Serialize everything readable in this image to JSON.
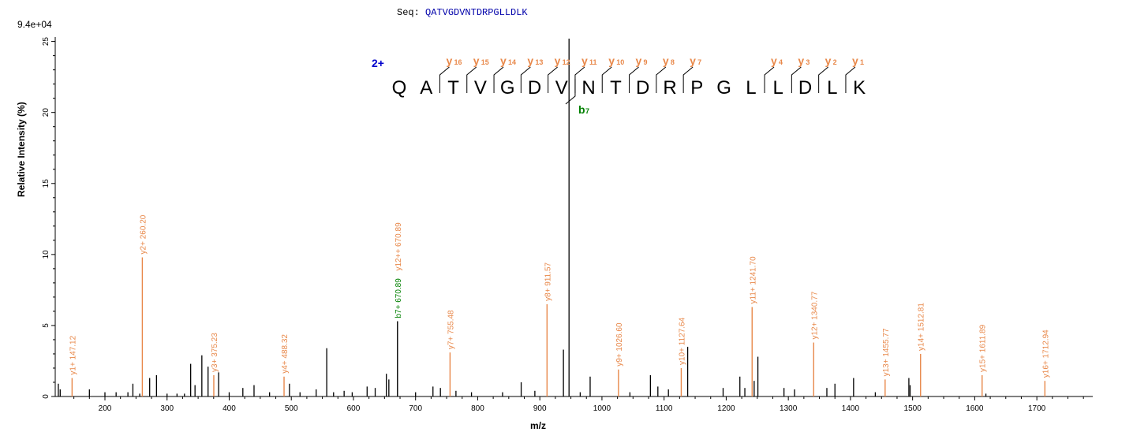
{
  "header": {
    "seq_prefix": "Seq:",
    "sequence": "QATVGDVNTDRPGLLDLK"
  },
  "chart_data": {
    "type": "bar",
    "title": "",
    "scale_label": "9.4e+04",
    "xlabel": "m/z",
    "ylabel": "Relative  Intensity (%)",
    "xlim": [
      120,
      1790
    ],
    "ylim": [
      0,
      25.2
    ],
    "xticks": [
      200,
      300,
      400,
      500,
      600,
      700,
      800,
      900,
      1000,
      1100,
      1200,
      1300,
      1400,
      1500,
      1600,
      1700
    ],
    "yticks": [
      0,
      5,
      10,
      15,
      20,
      25
    ],
    "colors": {
      "y_ion": "#e8884a",
      "b_ion": "#008000",
      "other": "#000000",
      "charge": "#0000cc"
    },
    "annotated_peaks": [
      {
        "mz": 147.12,
        "intensity": 1.3,
        "label": "y1+ 147.12",
        "ion": "y"
      },
      {
        "mz": 260.2,
        "intensity": 9.8,
        "label": "y2+ 260.20",
        "ion": "y"
      },
      {
        "mz": 375.23,
        "intensity": 1.5,
        "label": "y3+ 375.23",
        "ion": "y"
      },
      {
        "mz": 488.32,
        "intensity": 1.4,
        "label": "y4+ 488.32",
        "ion": "y"
      },
      {
        "mz": 670.89,
        "intensity": 5.3,
        "label": "b7+ 670.89",
        "ion": "b"
      },
      {
        "mz": 670.89,
        "intensity": 5.3,
        "label": "y12++ 670.89",
        "ion": "y"
      },
      {
        "mz": 755.48,
        "intensity": 3.1,
        "label": "y7+ 755.48",
        "ion": "y"
      },
      {
        "mz": 911.57,
        "intensity": 6.5,
        "label": "y8+ 911.57",
        "ion": "y"
      },
      {
        "mz": 1026.6,
        "intensity": 1.9,
        "label": "y9+ 1026.60",
        "ion": "y"
      },
      {
        "mz": 1127.64,
        "intensity": 2.0,
        "label": "y10+ 1127.64",
        "ion": "y"
      },
      {
        "mz": 1241.7,
        "intensity": 6.3,
        "label": "y11+ 1241.70",
        "ion": "y"
      },
      {
        "mz": 1340.77,
        "intensity": 3.8,
        "label": "y12+ 1340.77",
        "ion": "y"
      },
      {
        "mz": 1455.77,
        "intensity": 1.2,
        "label": "y13+ 1455.77",
        "ion": "y"
      },
      {
        "mz": 1512.81,
        "intensity": 3.0,
        "label": "y14+ 1512.81",
        "ion": "y"
      },
      {
        "mz": 1611.89,
        "intensity": 1.5,
        "label": "y15+ 1611.89",
        "ion": "y"
      },
      {
        "mz": 1712.94,
        "intensity": 1.1,
        "label": "y16+ 1712.94",
        "ion": "y"
      }
    ],
    "other_peaks": [
      {
        "mz": 125,
        "intensity": 0.9
      },
      {
        "mz": 128,
        "intensity": 0.5
      },
      {
        "mz": 175,
        "intensity": 0.5
      },
      {
        "mz": 200,
        "intensity": 0.3
      },
      {
        "mz": 218,
        "intensity": 0.3
      },
      {
        "mz": 237,
        "intensity": 0.3
      },
      {
        "mz": 245,
        "intensity": 0.9
      },
      {
        "mz": 256,
        "intensity": 0.2
      },
      {
        "mz": 272,
        "intensity": 1.3
      },
      {
        "mz": 283,
        "intensity": 1.5
      },
      {
        "mz": 300,
        "intensity": 0.2
      },
      {
        "mz": 316,
        "intensity": 0.2
      },
      {
        "mz": 328,
        "intensity": 0.2
      },
      {
        "mz": 338,
        "intensity": 2.3
      },
      {
        "mz": 345,
        "intensity": 0.8
      },
      {
        "mz": 356,
        "intensity": 2.9
      },
      {
        "mz": 366,
        "intensity": 2.1
      },
      {
        "mz": 383,
        "intensity": 1.7
      },
      {
        "mz": 400,
        "intensity": 0.3
      },
      {
        "mz": 422,
        "intensity": 0.6
      },
      {
        "mz": 440,
        "intensity": 0.8
      },
      {
        "mz": 465,
        "intensity": 0.3
      },
      {
        "mz": 497,
        "intensity": 0.9
      },
      {
        "mz": 514,
        "intensity": 0.3
      },
      {
        "mz": 540,
        "intensity": 0.5
      },
      {
        "mz": 557,
        "intensity": 3.4
      },
      {
        "mz": 568,
        "intensity": 0.3
      },
      {
        "mz": 585,
        "intensity": 0.4
      },
      {
        "mz": 598,
        "intensity": 0.3
      },
      {
        "mz": 622,
        "intensity": 0.7
      },
      {
        "mz": 635,
        "intensity": 0.6
      },
      {
        "mz": 653,
        "intensity": 1.6
      },
      {
        "mz": 657,
        "intensity": 1.2
      },
      {
        "mz": 700,
        "intensity": 0.3
      },
      {
        "mz": 728,
        "intensity": 0.7
      },
      {
        "mz": 740,
        "intensity": 0.6
      },
      {
        "mz": 765,
        "intensity": 0.4
      },
      {
        "mz": 790,
        "intensity": 0.3
      },
      {
        "mz": 840,
        "intensity": 0.3
      },
      {
        "mz": 870,
        "intensity": 1.0
      },
      {
        "mz": 892,
        "intensity": 0.4
      },
      {
        "mz": 938,
        "intensity": 3.3
      },
      {
        "mz": 947,
        "intensity": 25.2
      },
      {
        "mz": 965,
        "intensity": 0.3
      },
      {
        "mz": 981,
        "intensity": 1.4
      },
      {
        "mz": 1045,
        "intensity": 0.3
      },
      {
        "mz": 1078,
        "intensity": 1.5
      },
      {
        "mz": 1090,
        "intensity": 0.7
      },
      {
        "mz": 1107,
        "intensity": 0.5
      },
      {
        "mz": 1138,
        "intensity": 3.5
      },
      {
        "mz": 1195,
        "intensity": 0.6
      },
      {
        "mz": 1222,
        "intensity": 1.4
      },
      {
        "mz": 1230,
        "intensity": 0.6
      },
      {
        "mz": 1245,
        "intensity": 1.1
      },
      {
        "mz": 1251,
        "intensity": 2.8
      },
      {
        "mz": 1293,
        "intensity": 0.6
      },
      {
        "mz": 1310,
        "intensity": 0.5
      },
      {
        "mz": 1362,
        "intensity": 0.6
      },
      {
        "mz": 1375,
        "intensity": 0.9
      },
      {
        "mz": 1405,
        "intensity": 1.3
      },
      {
        "mz": 1440,
        "intensity": 0.3
      },
      {
        "mz": 1494,
        "intensity": 1.3
      },
      {
        "mz": 1496,
        "intensity": 0.8
      },
      {
        "mz": 1618,
        "intensity": 0.2
      }
    ],
    "peptide": {
      "charge": "2+",
      "residues": [
        "Q",
        "A",
        "T",
        "V",
        "G",
        "D",
        "V",
        "N",
        "T",
        "D",
        "R",
        "P",
        "G",
        "L",
        "L",
        "D",
        "L",
        "K"
      ],
      "y_ions": [
        {
          "after": 2,
          "n": "16"
        },
        {
          "after": 3,
          "n": "15"
        },
        {
          "after": 4,
          "n": "14"
        },
        {
          "after": 5,
          "n": "13"
        },
        {
          "after": 6,
          "n": "12"
        },
        {
          "after": 7,
          "n": "11"
        },
        {
          "after": 8,
          "n": "10"
        },
        {
          "after": 9,
          "n": "9"
        },
        {
          "after": 10,
          "n": "8"
        },
        {
          "after": 11,
          "n": "7"
        },
        {
          "after": 14,
          "n": "4"
        },
        {
          "after": 15,
          "n": "3"
        },
        {
          "after": 16,
          "n": "2"
        },
        {
          "after": 17,
          "n": "1"
        }
      ],
      "b_ions": [
        {
          "after": 7,
          "n": "7"
        }
      ],
      "ion_letter_y": "y",
      "ion_letter_b": "b"
    }
  }
}
